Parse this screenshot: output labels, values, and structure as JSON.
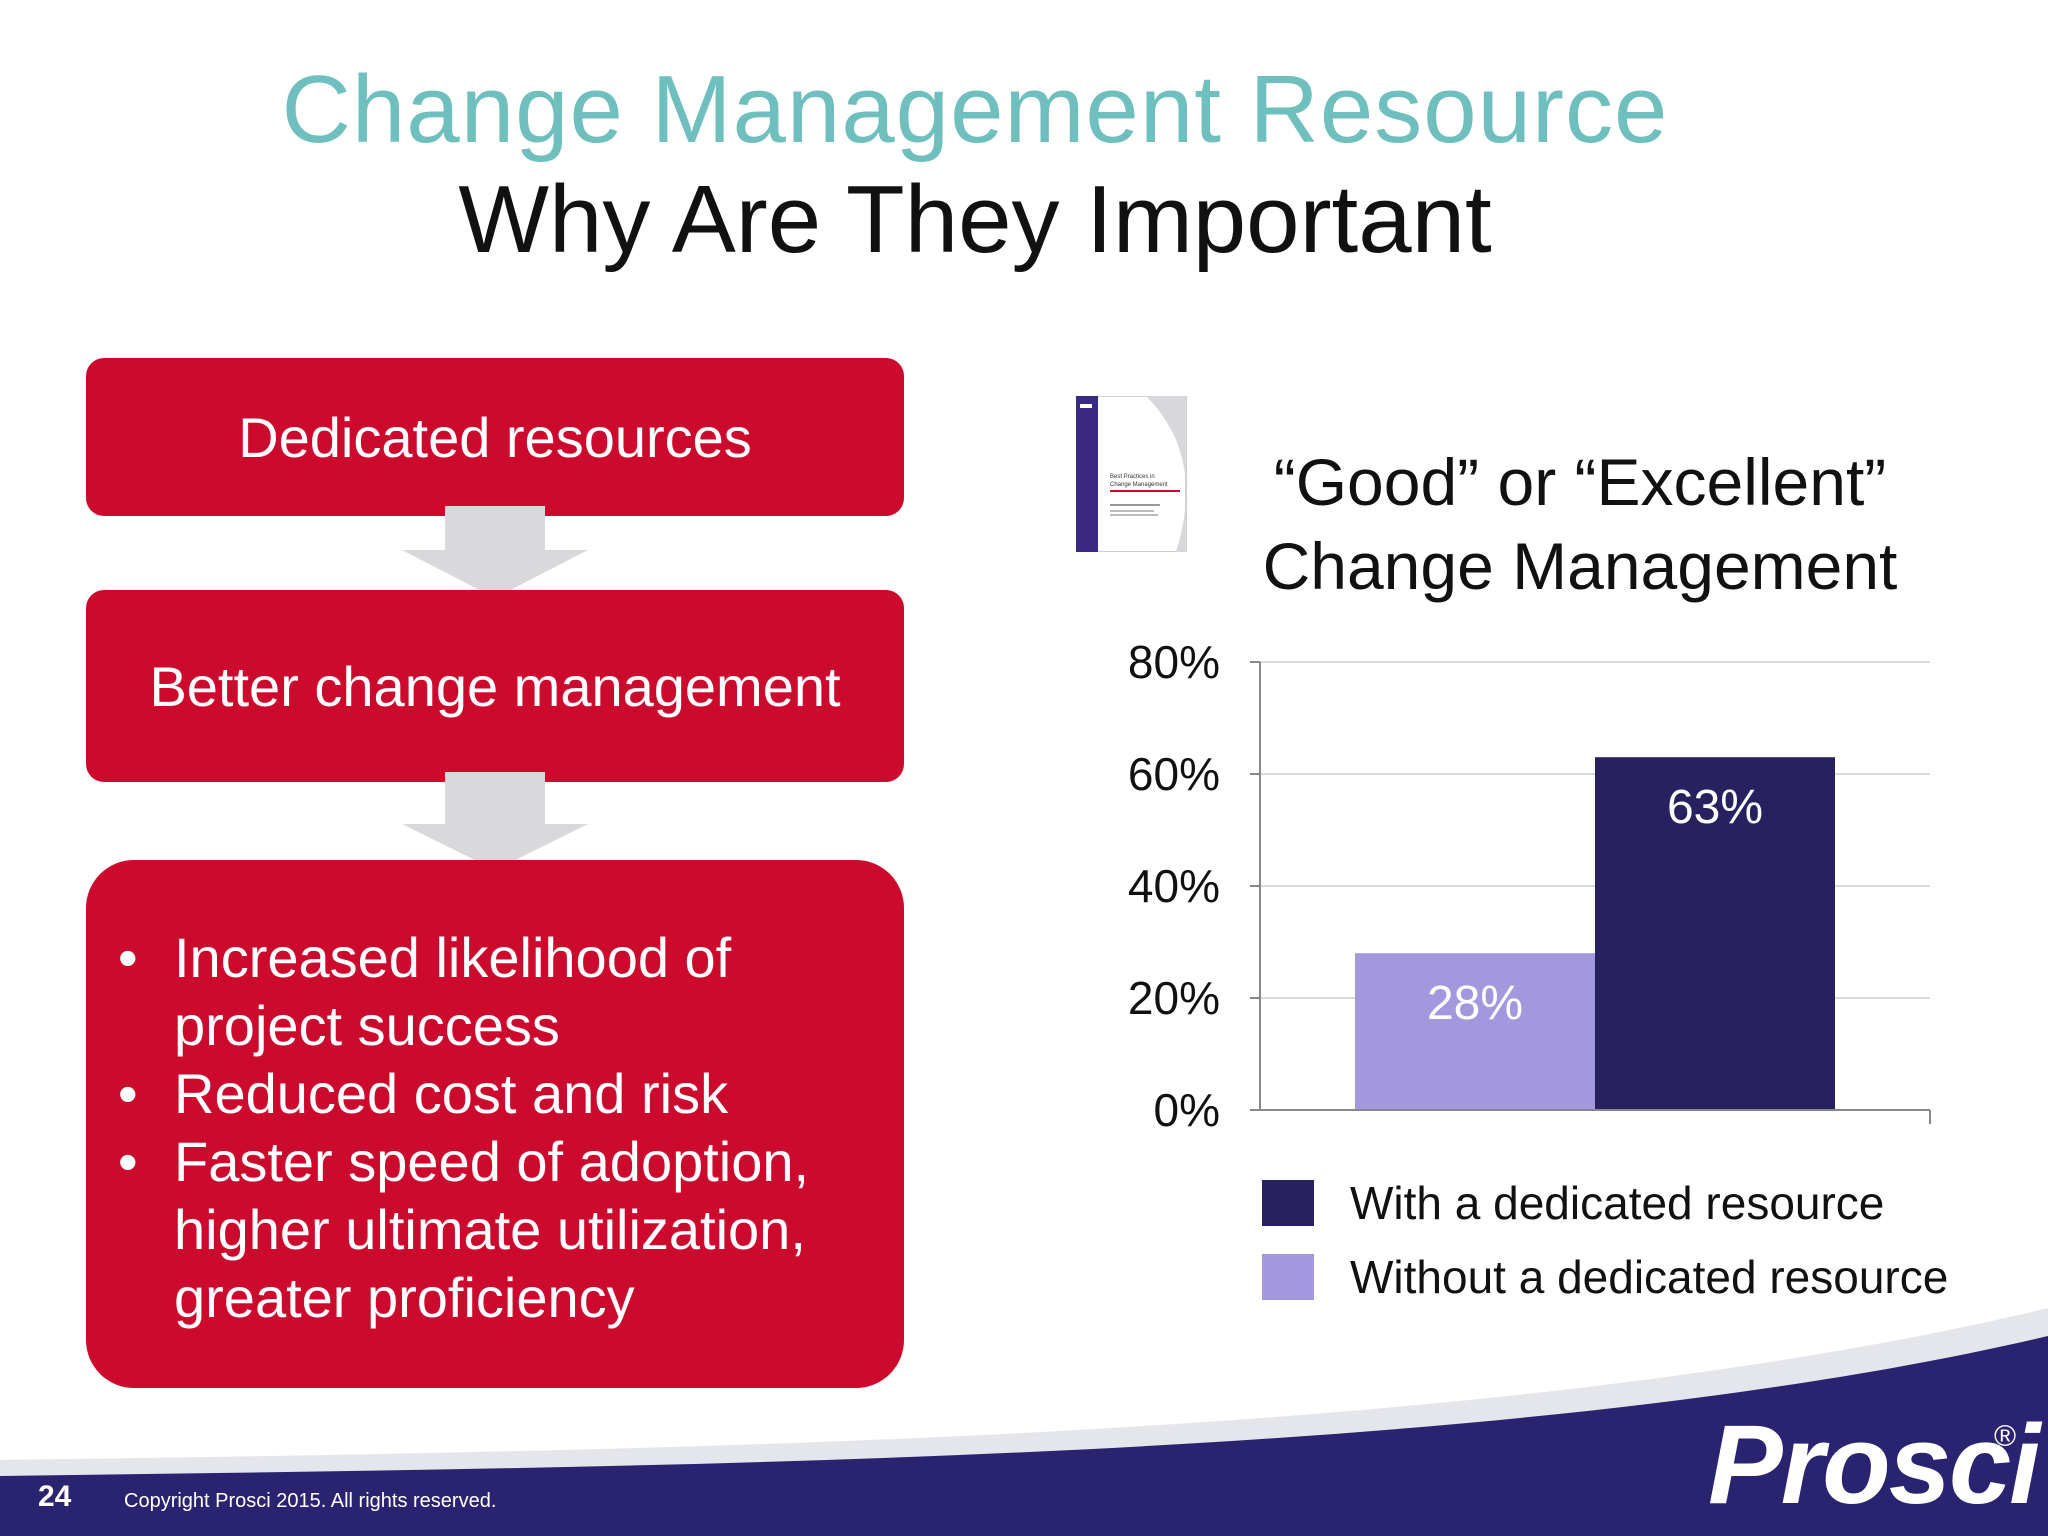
{
  "header": {
    "title": "Change Management Resource",
    "subtitle": "Why Are They Important"
  },
  "flow": {
    "box1": "Dedicated resources",
    "box2": "Better change management",
    "bullets": [
      {
        "line1": "Increased likelihood of",
        "line2": "project success"
      },
      {
        "line1": "Reduced cost and risk"
      },
      {
        "line1": "Faster speed of adoption,",
        "line2": "higher ultimate utilization,",
        "line3": "greater proficiency"
      }
    ]
  },
  "report": {
    "cover_title": "Best Practices in Change Management"
  },
  "chart_data": {
    "type": "bar",
    "title_line1": "“Good” or “Excellent”",
    "title_line2": "Change Management",
    "categories": [
      "Without a dedicated resource",
      "With a dedicated resource"
    ],
    "values": [
      28,
      63
    ],
    "data_labels": [
      "28%",
      "63%"
    ],
    "colors": [
      "#a398de",
      "#27215f"
    ],
    "ylim": [
      0,
      80
    ],
    "yticks": [
      "0%",
      "20%",
      "40%",
      "60%",
      "80%"
    ],
    "grid": true,
    "legend_placement": "bottom",
    "legend": [
      {
        "label": "With a dedicated resource",
        "color": "#27215f"
      },
      {
        "label": "Without a dedicated resource",
        "color": "#a398de"
      }
    ]
  },
  "footer": {
    "page_number": "24",
    "copyright": "Copyright Prosci 2015. All rights reserved.",
    "logo": "Prosci",
    "logo_mark": "®"
  },
  "colors": {
    "accent_teal": "#6fbfbf",
    "box_red": "#cc0a2d",
    "footer_navy": "#2a2370"
  }
}
